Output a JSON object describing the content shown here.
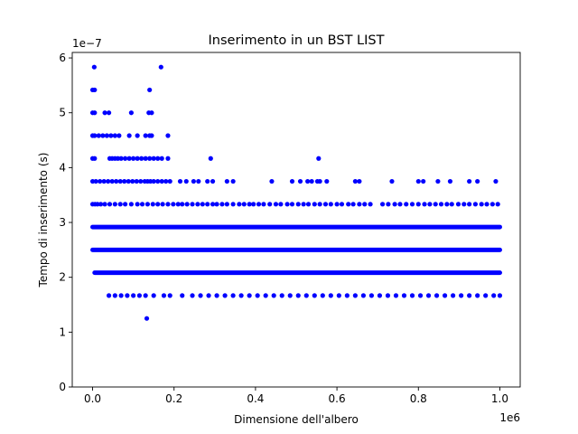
{
  "chart_data": {
    "type": "scatter",
    "title": "Inserimento in un BST LIST",
    "xlabel": "Dimensione dell'albero",
    "ylabel": "Tempo di inserimento (s)",
    "x_offset_label": "1e6",
    "y_offset_label": "1e−7",
    "xlim": [
      -50000,
      1050000
    ],
    "ylim": [
      0,
      6.1
    ],
    "x_ticks": [
      0,
      200000,
      400000,
      600000,
      800000,
      1000000
    ],
    "x_tick_labels": [
      "0.0",
      "0.2",
      "0.4",
      "0.6",
      "0.8",
      "1.0"
    ],
    "y_ticks": [
      0,
      1,
      2,
      3,
      4,
      5,
      6
    ],
    "y_tick_labels": [
      "0",
      "1",
      "2",
      "3",
      "4",
      "5",
      "6"
    ],
    "grid": false,
    "marker_color": "#0000ff",
    "series": [
      {
        "dense_levels": [
          {
            "y": 2.083,
            "x_range": [
              5000,
              1000000
            ]
          },
          {
            "y": 2.5,
            "x_range": [
              0,
              1000000
            ]
          },
          {
            "y": 2.917,
            "x_range": [
              0,
              1000000
            ]
          }
        ],
        "sparse_levels": [
          {
            "y": 3.333,
            "x": [
              0,
              6000,
              12000,
              20000,
              30000,
              42000,
              55000,
              68000,
              80000,
              95000,
              110000,
              122000,
              135000,
              148000,
              160000,
              172000,
              185000,
              198000,
              210000,
              220000,
              232000,
              245000,
              258000,
              270000,
              282000,
              295000,
              305000,
              318000,
              330000,
              345000,
              360000,
              372000,
              385000,
              395000,
              408000,
              420000,
              435000,
              450000,
              462000,
              478000,
              490000,
              505000,
              518000,
              530000,
              545000,
              558000,
              572000,
              585000,
              600000,
              612000,
              628000,
              640000,
              655000,
              668000,
              682000,
              712000,
              726000,
              742000,
              755000,
              770000,
              785000,
              800000,
              815000,
              828000,
              842000,
              856000,
              870000,
              882000,
              898000,
              912000,
              925000,
              940000,
              955000,
              968000,
              982000,
              995000
            ]
          },
          {
            "y": 3.75,
            "x": [
              0,
              8000,
              18000,
              28000,
              38000,
              48000,
              58000,
              68000,
              78000,
              88000,
              98000,
              108000,
              118000,
              128000,
              135000,
              142000,
              150000,
              160000,
              170000,
              180000,
              190000,
              215000,
              230000,
              248000,
              260000,
              282000,
              295000,
              330000,
              345000,
              440000,
              490000,
              510000,
              528000,
              538000,
              552000,
              558000,
              575000,
              645000,
              655000,
              735000,
              800000,
              812000,
              848000,
              878000,
              925000,
              945000,
              990000
            ]
          },
          {
            "y": 4.167,
            "x": [
              0,
              5000,
              42000,
              48000,
              55000,
              62000,
              70000,
              80000,
              90000,
              100000,
              110000,
              120000,
              130000,
              140000,
              150000,
              160000,
              170000,
              185000,
              290000,
              555000
            ]
          },
          {
            "y": 4.583,
            "x": [
              0,
              5000,
              15000,
              25000,
              35000,
              45000,
              55000,
              65000,
              90000,
              110000,
              130000,
              140000,
              145000,
              185000
            ]
          },
          {
            "y": 5.0,
            "x": [
              0,
              5000,
              30000,
              40000,
              95000,
              138000,
              145000
            ]
          },
          {
            "y": 5.417,
            "x": [
              0,
              5000,
              140000
            ]
          },
          {
            "y": 5.833,
            "x": [
              4000,
              168000
            ]
          },
          {
            "y": 1.667,
            "x": [
              40000,
              55000,
              70000,
              85000,
              100000,
              115000,
              130000,
              150000,
              175000,
              190000,
              220000,
              245000,
              265000,
              285000,
              305000,
              325000,
              345000,
              365000,
              385000,
              405000,
              425000,
              445000,
              465000,
              485000,
              505000,
              525000,
              545000,
              565000,
              585000,
              605000,
              625000,
              645000,
              665000,
              685000,
              705000,
              725000,
              745000,
              765000,
              785000,
              805000,
              825000,
              845000,
              865000,
              885000,
              905000,
              925000,
              945000,
              965000,
              985000,
              1000000
            ]
          },
          {
            "y": 1.25,
            "x": [
              133000
            ]
          }
        ]
      }
    ]
  }
}
